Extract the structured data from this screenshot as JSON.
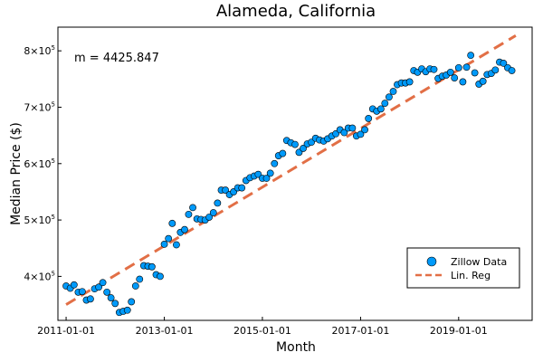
{
  "chart_data": {
    "type": "scatter",
    "title": "Alameda, California",
    "xlabel": "Month",
    "ylabel": "Median Price ($)",
    "x_ticks": [
      "2011-01-01",
      "2013-01-01",
      "2015-01-01",
      "2017-01-01",
      "2019-01-01"
    ],
    "y_ticks": [
      {
        "value": 400000,
        "base": "4×10",
        "exp": "5"
      },
      {
        "value": 500000,
        "base": "5×10",
        "exp": "5"
      },
      {
        "value": 600000,
        "base": "6×10",
        "exp": "5"
      },
      {
        "value": 700000,
        "base": "7×10",
        "exp": "5"
      },
      {
        "value": 800000,
        "base": "8×10",
        "exp": "5"
      }
    ],
    "xlim": [
      "2010-11-01",
      "2020-07-01"
    ],
    "ylim": [
      322000,
      842000
    ],
    "grid": false,
    "legend_position": "bottom-right",
    "annotation": "m = 4425.847",
    "colors": {
      "scatter": "#009AFA",
      "regression": "#E26F46"
    },
    "series": [
      {
        "name": "Zillow Data",
        "type": "scatter",
        "x": [
          "2011-01-01",
          "2011-02-01",
          "2011-03-01",
          "2011-04-01",
          "2011-05-01",
          "2011-06-01",
          "2011-07-01",
          "2011-08-01",
          "2011-09-01",
          "2011-10-01",
          "2011-11-01",
          "2011-12-01",
          "2012-01-01",
          "2012-02-01",
          "2012-03-01",
          "2012-04-01",
          "2012-05-01",
          "2012-06-01",
          "2012-07-01",
          "2012-08-01",
          "2012-09-01",
          "2012-10-01",
          "2012-11-01",
          "2012-12-01",
          "2013-01-01",
          "2013-02-01",
          "2013-03-01",
          "2013-04-01",
          "2013-05-01",
          "2013-06-01",
          "2013-07-01",
          "2013-08-01",
          "2013-09-01",
          "2013-10-01",
          "2013-11-01",
          "2013-12-01",
          "2014-01-01",
          "2014-02-01",
          "2014-03-01",
          "2014-04-01",
          "2014-05-01",
          "2014-06-01",
          "2014-07-01",
          "2014-08-01",
          "2014-09-01",
          "2014-10-01",
          "2014-11-01",
          "2014-12-01",
          "2015-01-01",
          "2015-02-01",
          "2015-03-01",
          "2015-04-01",
          "2015-05-01",
          "2015-06-01",
          "2015-07-01",
          "2015-08-01",
          "2015-09-01",
          "2015-10-01",
          "2015-11-01",
          "2015-12-01",
          "2016-01-01",
          "2016-02-01",
          "2016-03-01",
          "2016-04-01",
          "2016-05-01",
          "2016-06-01",
          "2016-07-01",
          "2016-08-01",
          "2016-09-01",
          "2016-10-01",
          "2016-11-01",
          "2016-12-01",
          "2017-01-01",
          "2017-02-01",
          "2017-03-01",
          "2017-04-01",
          "2017-05-01",
          "2017-06-01",
          "2017-07-01",
          "2017-08-01",
          "2017-09-01",
          "2017-10-01",
          "2017-11-01",
          "2017-12-01",
          "2018-01-01",
          "2018-02-01",
          "2018-03-01",
          "2018-04-01",
          "2018-05-01",
          "2018-06-01",
          "2018-07-01",
          "2018-08-01",
          "2018-09-01",
          "2018-10-01",
          "2018-11-01",
          "2018-12-01",
          "2019-01-01",
          "2019-02-01",
          "2019-03-01",
          "2019-04-01",
          "2019-05-01",
          "2019-06-01",
          "2019-07-01",
          "2019-08-01",
          "2019-09-01",
          "2019-10-01",
          "2019-11-01",
          "2019-12-01",
          "2020-01-01",
          "2020-02-01"
        ],
        "y": [
          383000,
          379000,
          385000,
          372000,
          373000,
          358000,
          360000,
          378000,
          381000,
          389000,
          372000,
          362000,
          352000,
          336000,
          338000,
          340000,
          355000,
          383000,
          395000,
          419000,
          418000,
          417000,
          403000,
          400000,
          457000,
          467000,
          494000,
          456000,
          478000,
          483000,
          510000,
          522000,
          502000,
          501000,
          500000,
          505000,
          513000,
          530000,
          553000,
          553000,
          545000,
          550000,
          557000,
          557000,
          570000,
          575000,
          578000,
          581000,
          574000,
          574000,
          583000,
          600000,
          614000,
          618000,
          641000,
          637000,
          634000,
          620000,
          627000,
          635000,
          638000,
          645000,
          642000,
          640000,
          644000,
          649000,
          653000,
          660000,
          655000,
          663000,
          663000,
          649000,
          652000,
          660000,
          680000,
          697000,
          693000,
          697000,
          707000,
          718000,
          728000,
          740000,
          743000,
          743000,
          745000,
          765000,
          762000,
          768000,
          763000,
          768000,
          767000,
          751000,
          755000,
          757000,
          762000,
          752000,
          770000,
          745000,
          771000,
          792000,
          761000,
          741000,
          746000,
          758000,
          760000,
          766000,
          780000,
          778000,
          770000,
          765000
        ]
      },
      {
        "name": "Lin. Reg",
        "type": "line",
        "x": [
          "2011-01-01",
          "2020-03-01"
        ],
        "y": [
          350000,
          827000
        ]
      }
    ]
  }
}
